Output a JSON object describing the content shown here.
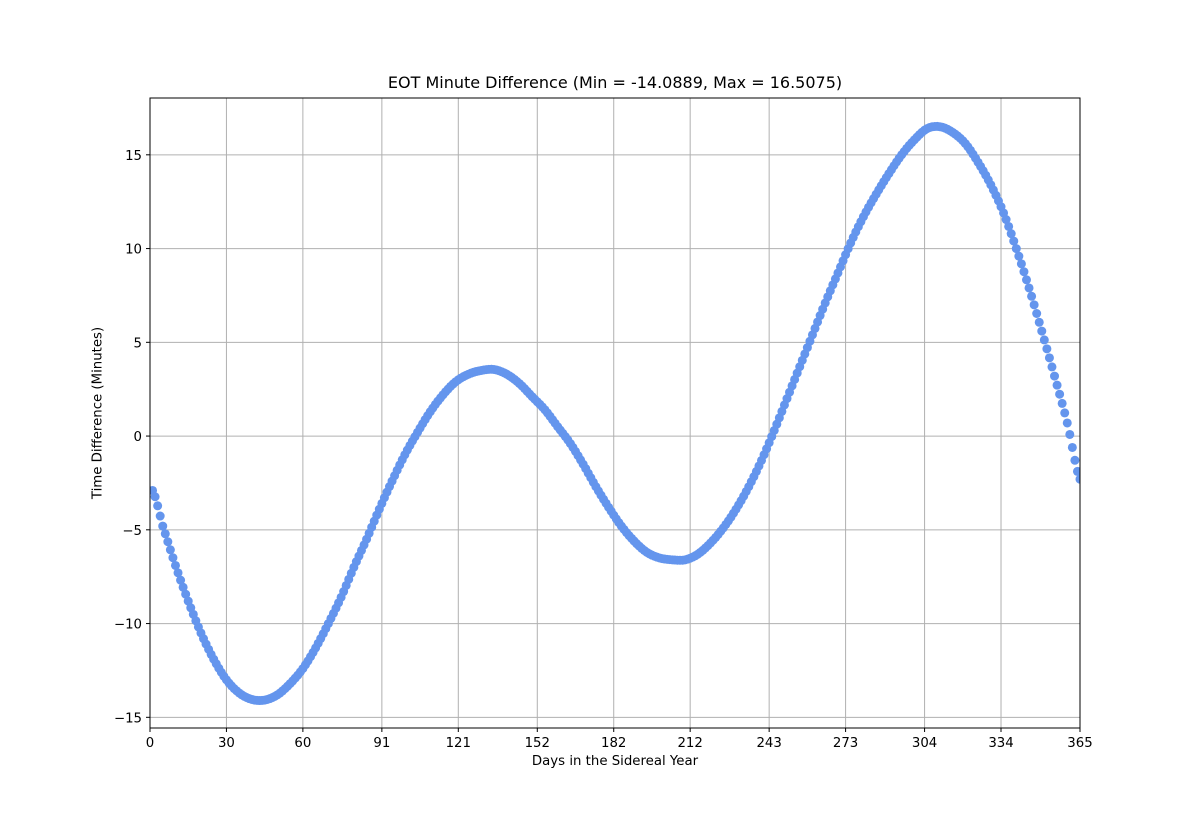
{
  "chart_data": {
    "type": "scatter",
    "title": "EOT Minute Difference (Min = -14.0889, Max = 16.5075)",
    "xlabel": "Days in the Sidereal Year",
    "ylabel": "Time Difference (Minutes)",
    "xlim": [
      0,
      365
    ],
    "ylim": [
      -15.57,
      18.03
    ],
    "grid": true,
    "legend": null,
    "marker_color": "#6495ED",
    "marker_radius": 4.5,
    "x_ticks": [
      0,
      30,
      60,
      91,
      121,
      152,
      182,
      212,
      243,
      273,
      304,
      334,
      365
    ],
    "y_ticks": [
      -15,
      -10,
      -5,
      0,
      5,
      10,
      15
    ],
    "point_spacing_days": 1,
    "first_day": 1,
    "last_day": 365,
    "series": [
      {
        "name": "EOT",
        "x": [
          1,
          5,
          10,
          15,
          20,
          25,
          30,
          35,
          40,
          45,
          50,
          55,
          60,
          65,
          70,
          75,
          80,
          85,
          90,
          95,
          100,
          105,
          110,
          115,
          120,
          125,
          130,
          135,
          140,
          145,
          150,
          155,
          160,
          165,
          170,
          175,
          180,
          185,
          190,
          195,
          200,
          205,
          210,
          215,
          220,
          225,
          230,
          235,
          240,
          245,
          250,
          255,
          260,
          265,
          270,
          275,
          280,
          285,
          290,
          295,
          300,
          305,
          310,
          315,
          320,
          325,
          330,
          335,
          340,
          345,
          350,
          355,
          360,
          365
        ],
        "values": [
          -2.9,
          -4.8,
          -6.9,
          -8.8,
          -10.5,
          -11.9,
          -13.0,
          -13.7,
          -14.05,
          -14.08,
          -13.8,
          -13.2,
          -12.4,
          -11.3,
          -10.0,
          -8.6,
          -7.0,
          -5.5,
          -3.9,
          -2.4,
          -1.0,
          0.2,
          1.3,
          2.2,
          2.9,
          3.3,
          3.5,
          3.55,
          3.3,
          2.8,
          2.1,
          1.4,
          0.5,
          -0.4,
          -1.5,
          -2.7,
          -3.8,
          -4.8,
          -5.6,
          -6.2,
          -6.5,
          -6.6,
          -6.6,
          -6.3,
          -5.7,
          -4.9,
          -3.9,
          -2.7,
          -1.3,
          0.3,
          2.0,
          3.7,
          5.4,
          7.1,
          8.7,
          10.3,
          11.7,
          12.9,
          14.0,
          15.0,
          15.8,
          16.4,
          16.5,
          16.2,
          15.6,
          14.6,
          13.4,
          11.9,
          10.0,
          7.9,
          5.6,
          3.2,
          0.7,
          -2.3
        ]
      }
    ],
    "min_value": -14.0889,
    "max_value": 16.5075
  }
}
